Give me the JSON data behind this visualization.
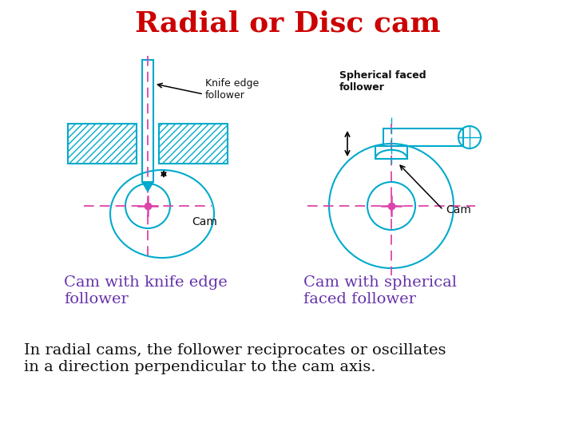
{
  "title": "Radial or Disc cam",
  "title_color": "#cc0000",
  "title_fontsize": 26,
  "cam_color": "#00aacc",
  "centerline_color": "#dd44aa",
  "label_color_purple": "#6633aa",
  "label_color_black": "#111111",
  "bottom_text_line1": "In radial cams, the follower reciprocates or oscillates",
  "bottom_text_line2": "in a direction perpendicular to the cam axis.",
  "label1_line1": "Cam with knife edge",
  "label1_line2": "follower",
  "label2_line1": "Cam with spherical",
  "label2_line2": "faced follower",
  "cam_label": "Cam",
  "knife_label_line1": "Knife edge",
  "knife_label_line2": "follower",
  "spherical_label_line1": "Spherical faced",
  "spherical_label_line2": "follower"
}
